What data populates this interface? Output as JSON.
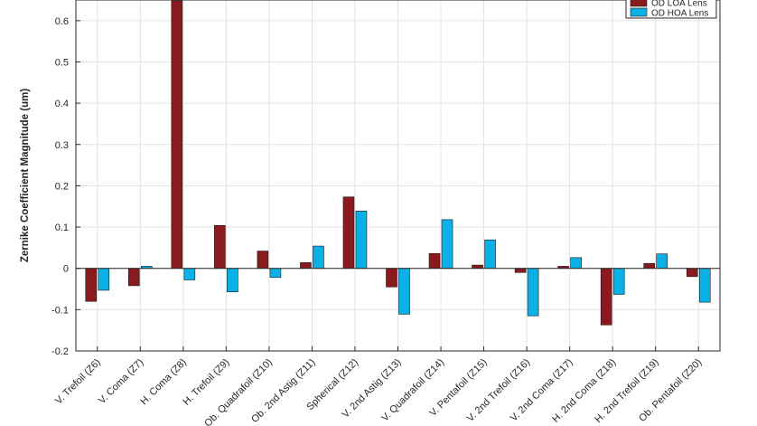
{
  "chart_data": {
    "type": "bar",
    "title": "",
    "xlabel": "",
    "ylabel": "Zernike Coefficient Magnitude (um)",
    "ylim": [
      -0.2,
      0.65
    ],
    "yticks": [
      "-0.2",
      "-0.1",
      "0",
      "0.1",
      "0.2",
      "0.3",
      "0.4",
      "0.5",
      "0.6"
    ],
    "grid": true,
    "legend_position": "top-right",
    "categories": [
      "V. Trefoil (Z6)",
      "V. Coma (Z7)",
      "H. Coma (Z8)",
      "H. Trefoil (Z9)",
      "Ob. Quadrafoil (Z10)",
      "Ob. 2nd Astig (Z11)",
      "Spherical (Z12)",
      "V. 2nd Astig (Z13)",
      "V. Quadrafoil (Z14)",
      "V. Pentafoil (Z15)",
      "V. 2nd Trefoil (Z16)",
      "V. 2nd Coma (Z17)",
      "H. 2nd Coma (Z18)",
      "H. 2nd Trefoil (Z19)",
      "Ob. Pentafoil (Z20)"
    ],
    "series": [
      {
        "name": "OD LOA Lens",
        "color": "#8b1a1f",
        "values": [
          -0.08,
          -0.042,
          0.648,
          0.104,
          0.042,
          0.014,
          0.173,
          -0.045,
          0.036,
          0.008,
          -0.01,
          0.005,
          -0.137,
          0.012,
          -0.02
        ]
      },
      {
        "name": "OD HOA Lens",
        "color": "#0ab0e6",
        "values": [
          -0.053,
          0.005,
          -0.028,
          -0.057,
          -0.022,
          0.054,
          0.139,
          -0.111,
          0.118,
          0.069,
          -0.115,
          0.026,
          -0.063,
          0.035,
          -0.082
        ]
      }
    ]
  }
}
